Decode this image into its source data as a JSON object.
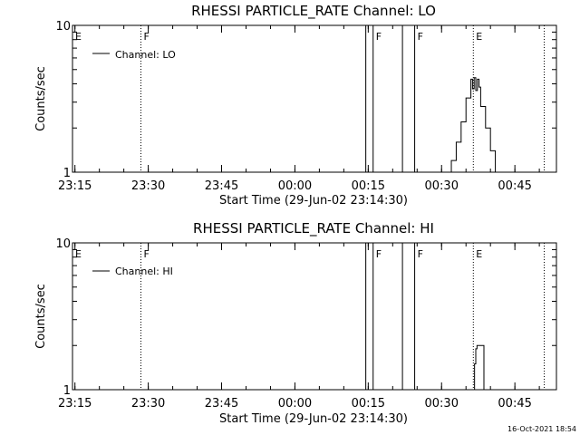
{
  "chart_data": [
    {
      "type": "line",
      "title": "RHESSI PARTICLE_RATE Channel: LO",
      "xlabel": "Start Time (29-Jun-02 23:14:30)",
      "ylabel": "Counts/sec",
      "x_tick_labels": [
        "23:15",
        "23:30",
        "23:45",
        "00:00",
        "00:15",
        "00:30",
        "00:45"
      ],
      "y_tick_labels": [
        "1",
        "10"
      ],
      "y_scale": "log",
      "ylim": [
        1,
        10
      ],
      "xlim": [
        "23:14:30",
        "00:53:30"
      ],
      "legend": {
        "entries": [
          "Channel: LO"
        ],
        "placement": "top-left"
      },
      "markers": [
        {
          "label": "E",
          "time": "23:14:30",
          "style": "none"
        },
        {
          "label": "F",
          "time": "23:28:30",
          "style": "dotted"
        },
        {
          "label": "",
          "time": "00:14:30",
          "style": "solid"
        },
        {
          "label": "F",
          "time": "00:16:00",
          "style": "solid"
        },
        {
          "label": "",
          "time": "00:22:00",
          "style": "solid"
        },
        {
          "label": "F",
          "time": "00:24:30",
          "style": "solid"
        },
        {
          "label": "E",
          "time": "00:36:30",
          "style": "dotted"
        },
        {
          "label": "",
          "time": "00:51:00",
          "style": "dotted"
        }
      ],
      "series": [
        {
          "name": "Channel: LO",
          "x": [
            "00:31:00",
            "00:32:00",
            "00:33:00",
            "00:34:00",
            "00:35:00",
            "00:36:00",
            "00:36:20",
            "00:36:40",
            "00:37:00",
            "00:37:20",
            "00:37:40",
            "00:38:00",
            "00:39:00",
            "00:40:00",
            "00:41:00"
          ],
          "values": [
            1.0,
            1.2,
            1.6,
            2.2,
            3.2,
            4.3,
            3.7,
            4.4,
            3.6,
            4.3,
            3.8,
            2.8,
            2.0,
            1.4,
            1.0
          ]
        }
      ]
    },
    {
      "type": "line",
      "title": "RHESSI PARTICLE_RATE Channel: HI",
      "xlabel": "Start Time (29-Jun-02 23:14:30)",
      "ylabel": "Counts/sec",
      "x_tick_labels": [
        "23:15",
        "23:30",
        "23:45",
        "00:00",
        "00:15",
        "00:30",
        "00:45"
      ],
      "y_tick_labels": [
        "1",
        "10"
      ],
      "y_scale": "log",
      "ylim": [
        1,
        10
      ],
      "xlim": [
        "23:14:30",
        "00:53:30"
      ],
      "legend": {
        "entries": [
          "Channel: HI"
        ],
        "placement": "top-left"
      },
      "markers": [
        {
          "label": "E",
          "time": "23:14:30",
          "style": "none"
        },
        {
          "label": "F",
          "time": "23:28:30",
          "style": "dotted"
        },
        {
          "label": "",
          "time": "00:14:30",
          "style": "solid"
        },
        {
          "label": "F",
          "time": "00:16:00",
          "style": "solid"
        },
        {
          "label": "",
          "time": "00:22:00",
          "style": "solid"
        },
        {
          "label": "F",
          "time": "00:24:30",
          "style": "solid"
        },
        {
          "label": "E",
          "time": "00:36:30",
          "style": "dotted"
        },
        {
          "label": "",
          "time": "00:51:00",
          "style": "dotted"
        }
      ],
      "series": [
        {
          "name": "Channel: HI",
          "x": [
            "00:36:30",
            "00:36:45",
            "00:37:00",
            "00:37:15",
            "00:37:30",
            "00:38:00",
            "00:38:30",
            "00:38:40"
          ],
          "values": [
            1.0,
            1.5,
            1.9,
            2.0,
            2.0,
            2.0,
            2.0,
            1.0
          ]
        }
      ]
    }
  ],
  "footer": {
    "timestamp": "16-Oct-2021 18:54"
  },
  "colors": {
    "background": "#ffffff",
    "foreground": "#000000"
  }
}
